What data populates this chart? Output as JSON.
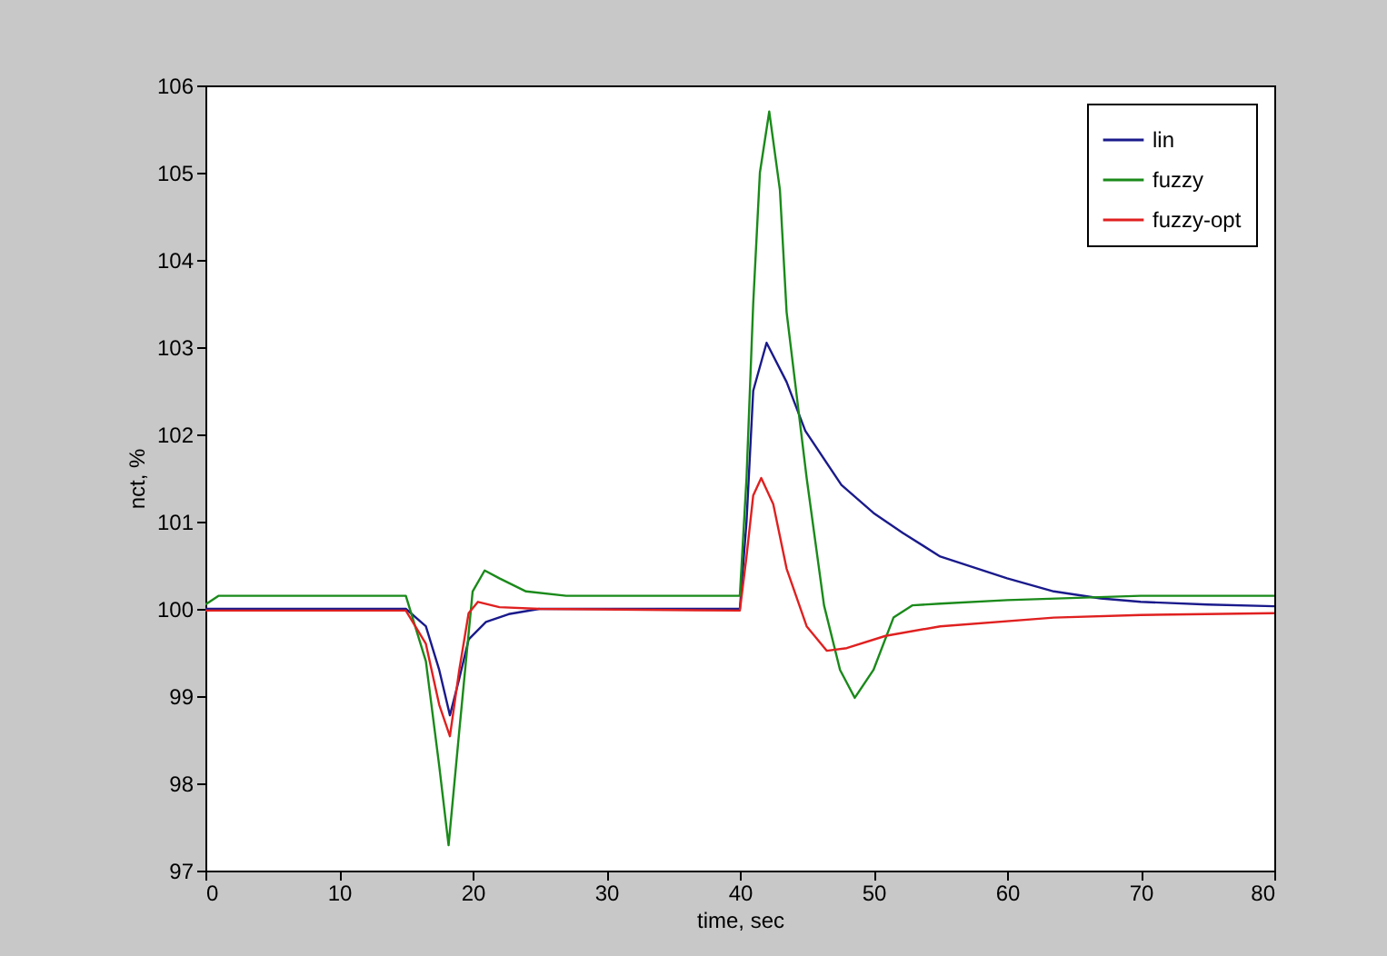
{
  "chart_data": {
    "type": "line",
    "xlabel": "time, sec",
    "ylabel": "nct, %",
    "xlim": [
      0,
      80
    ],
    "xticks": [
      0,
      10,
      20,
      30,
      40,
      50,
      60,
      70,
      80
    ],
    "ylim": [
      97,
      106
    ],
    "yticks": [
      97,
      98,
      99,
      100,
      101,
      102,
      103,
      104,
      105,
      106
    ],
    "grid": false,
    "legend": "top right",
    "series": [
      {
        "name": "lin",
        "color": "#1a1a8c",
        "x": [
          0,
          15,
          16.5,
          17.5,
          18.3,
          19,
          19.7,
          21,
          22.7,
          25,
          40,
          40.5,
          41,
          42,
          43.5,
          44.9,
          47.6,
          50,
          52.2,
          55,
          60,
          63.5,
          67,
          70,
          75,
          80
        ],
        "values": [
          100,
          100,
          99.8,
          99.3,
          98.78,
          99.2,
          99.65,
          99.85,
          99.94,
          100,
          100,
          101,
          102.5,
          103.05,
          102.6,
          102.04,
          101.42,
          101.1,
          100.87,
          100.6,
          100.35,
          100.2,
          100.12,
          100.08,
          100.05,
          100.03
        ]
      },
      {
        "name": "fuzzy",
        "color": "#1a8a1a",
        "x": [
          0,
          1,
          15,
          16.5,
          17.5,
          18.2,
          19,
          20,
          20.9,
          22,
          24,
          27,
          30,
          40,
          40.5,
          41,
          41.5,
          42.2,
          43,
          43.5,
          45,
          46.3,
          47.5,
          48.6,
          50,
          51.5,
          52.9,
          55,
          60,
          70,
          80
        ],
        "values": [
          100.05,
          100.15,
          100.15,
          99.4,
          98.2,
          97.29,
          98.6,
          100.2,
          100.44,
          100.35,
          100.2,
          100.15,
          100.15,
          100.15,
          101.5,
          103.5,
          105,
          105.7,
          104.8,
          103.4,
          101.5,
          100.04,
          99.3,
          98.98,
          99.3,
          99.9,
          100.04,
          100.06,
          100.1,
          100.15,
          100.15
        ]
      },
      {
        "name": "fuzzy-opt",
        "color": "#e02020",
        "x": [
          0,
          15,
          16.5,
          17.5,
          18.3,
          19,
          19.7,
          20.4,
          22,
          25,
          40,
          40.5,
          41,
          41.6,
          42.5,
          43.5,
          45,
          46.5,
          48,
          50.9,
          55,
          63.5,
          70,
          80
        ],
        "values": [
          99.98,
          99.98,
          99.6,
          98.9,
          98.54,
          99.3,
          99.95,
          100.08,
          100.02,
          100,
          99.98,
          100.6,
          101.3,
          101.5,
          101.2,
          100.46,
          99.8,
          99.52,
          99.55,
          99.69,
          99.8,
          99.9,
          99.93,
          99.95
        ]
      }
    ]
  }
}
